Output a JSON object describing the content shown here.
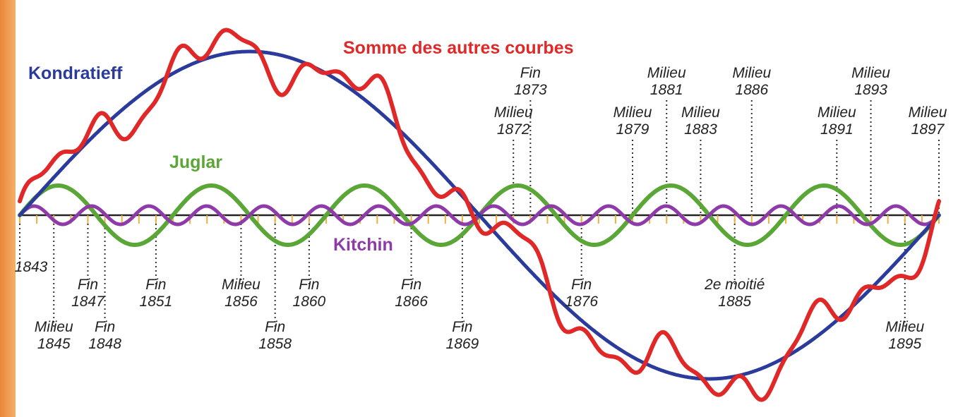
{
  "labels": {
    "kondratieff": "Kondratieff",
    "somme": "Somme des autres courbes",
    "juglar": "Juglar",
    "kitchin": "Kitchin"
  },
  "colors": {
    "kondratieff": "#2a3b9c",
    "somme": "#e02828",
    "juglar": "#5aa637",
    "kitchin": "#8e3aa8",
    "axis": "#222222",
    "guide": "#333333",
    "accent": "#e8873a"
  },
  "timeline": {
    "start_year": 1843,
    "end_year": 1897
  },
  "markers": [
    {
      "year": 1843,
      "lines": [
        "1843"
      ]
    },
    {
      "year": 1845,
      "lines": [
        "Milieu",
        "1845"
      ]
    },
    {
      "year": 1847,
      "lines": [
        "Fin",
        "1847"
      ]
    },
    {
      "year": 1848,
      "lines": [
        "Fin",
        "1848"
      ]
    },
    {
      "year": 1851,
      "lines": [
        "Fin",
        "1851"
      ]
    },
    {
      "year": 1856,
      "lines": [
        "Milieu",
        "1856"
      ]
    },
    {
      "year": 1858,
      "lines": [
        "Fin",
        "1858"
      ]
    },
    {
      "year": 1860,
      "lines": [
        "Fin",
        "1860"
      ]
    },
    {
      "year": 1866,
      "lines": [
        "Fin",
        "1866"
      ]
    },
    {
      "year": 1869,
      "lines": [
        "Fin",
        "1869"
      ]
    },
    {
      "year": 1872,
      "lines": [
        "Milieu",
        "1872"
      ]
    },
    {
      "year": 1873,
      "lines": [
        "Fin",
        "1873"
      ]
    },
    {
      "year": 1876,
      "lines": [
        "Fin",
        "1876"
      ]
    },
    {
      "year": 1879,
      "lines": [
        "Milieu",
        "1879"
      ]
    },
    {
      "year": 1881,
      "lines": [
        "Milieu",
        "1881"
      ]
    },
    {
      "year": 1883,
      "lines": [
        "Milieu",
        "1883"
      ]
    },
    {
      "year": 1885,
      "lines": [
        "2e moitié",
        "1885"
      ]
    },
    {
      "year": 1886,
      "lines": [
        "Milieu",
        "1886"
      ]
    },
    {
      "year": 1891,
      "lines": [
        "Milieu",
        "1891"
      ]
    },
    {
      "year": 1893,
      "lines": [
        "Milieu",
        "1893"
      ]
    },
    {
      "year": 1895,
      "lines": [
        "Milieu",
        "1895"
      ]
    },
    {
      "year": 1897,
      "lines": [
        "Milieu",
        "1897"
      ]
    }
  ]
}
